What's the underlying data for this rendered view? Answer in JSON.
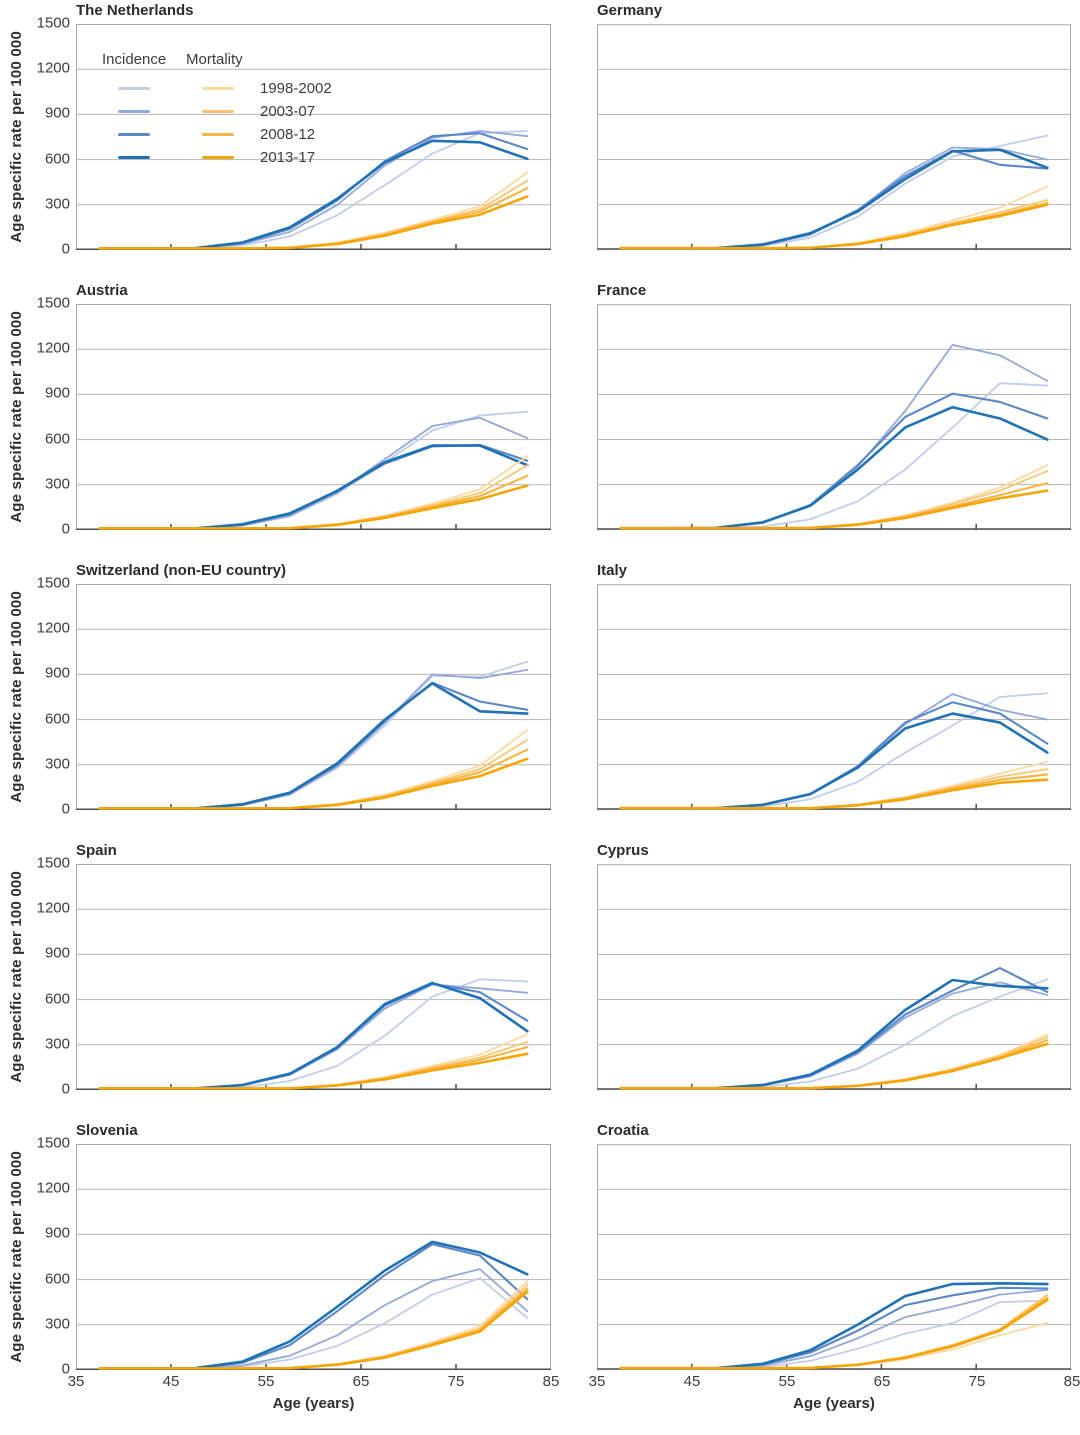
{
  "figure": {
    "y_axis_label": "Age specific rate per 100 000",
    "x_axis_label": "Age (years)",
    "y_ticks": [
      0,
      300,
      600,
      900,
      1200,
      1500
    ],
    "x_ticks": [
      35,
      45,
      55,
      65,
      75,
      85
    ],
    "grid_color": "#b5b5b5",
    "frame_color": "#a9a9a9",
    "axis_color": "#4d4d4d",
    "legend": {
      "col1_header": "Incidence",
      "col2_header": "Mortality",
      "periods": [
        "1998-2002",
        "2003-07",
        "2008-12",
        "2013-17"
      ],
      "incidence_colors": [
        "#c2cde9",
        "#93a9d9",
        "#5c87c7",
        "#1f72b5"
      ],
      "mortality_colors": [
        "#fdd9a0",
        "#fbc671",
        "#f9b440",
        "#f6a506"
      ]
    }
  },
  "chart_data": [
    {
      "type": "line",
      "title": "The Netherlands",
      "x": [
        37.5,
        42.5,
        47.5,
        52.5,
        57.5,
        62.5,
        67.5,
        72.5,
        77.5,
        82.5
      ],
      "xlim": [
        35,
        85
      ],
      "ylim": [
        0,
        1500
      ],
      "grid": "horizontal",
      "legend_position": "top-left-first-panel",
      "xlabel": "Age (years)",
      "ylabel": "Age specific rate per 100 000",
      "incidence": [
        [
          1,
          2,
          8,
          30,
          90,
          230,
          430,
          640,
          775,
          790
        ],
        [
          1,
          2,
          10,
          40,
          120,
          300,
          560,
          745,
          790,
          755
        ],
        [
          1,
          3,
          11,
          45,
          140,
          330,
          590,
          755,
          775,
          670
        ],
        [
          1,
          3,
          12,
          50,
          150,
          340,
          580,
          725,
          715,
          605
        ]
      ],
      "mortality": [
        [
          0,
          1,
          2,
          6,
          18,
          50,
          115,
          200,
          290,
          515
        ],
        [
          0,
          1,
          2,
          5,
          16,
          45,
          108,
          190,
          270,
          460
        ],
        [
          0,
          1,
          2,
          5,
          15,
          42,
          100,
          185,
          255,
          410
        ],
        [
          0,
          1,
          2,
          5,
          14,
          40,
          95,
          175,
          235,
          355
        ]
      ]
    },
    {
      "type": "line",
      "title": "Germany",
      "x": [
        37.5,
        42.5,
        47.5,
        52.5,
        57.5,
        62.5,
        67.5,
        72.5,
        77.5,
        82.5
      ],
      "xlim": [
        35,
        85
      ],
      "ylim": [
        0,
        1500
      ],
      "grid": "horizontal",
      "incidence": [
        [
          1,
          2,
          6,
          25,
          80,
          220,
          440,
          620,
          690,
          760
        ],
        [
          1,
          2,
          8,
          30,
          100,
          260,
          510,
          680,
          670,
          600
        ],
        [
          1,
          2,
          9,
          32,
          105,
          265,
          490,
          660,
          565,
          540
        ],
        [
          1,
          2,
          9,
          35,
          110,
          255,
          470,
          655,
          665,
          545
        ]
      ],
      "mortality": [
        [
          0,
          1,
          2,
          5,
          15,
          45,
          110,
          195,
          280,
          420
        ],
        [
          0,
          1,
          2,
          5,
          14,
          42,
          100,
          180,
          250,
          330
        ],
        [
          0,
          1,
          2,
          5,
          13,
          40,
          95,
          170,
          235,
          310
        ],
        [
          0,
          1,
          2,
          5,
          13,
          38,
          90,
          165,
          225,
          300
        ]
      ]
    },
    {
      "type": "line",
      "title": "Austria",
      "x": [
        37.5,
        42.5,
        47.5,
        52.5,
        57.5,
        62.5,
        67.5,
        72.5,
        77.5,
        82.5
      ],
      "xlim": [
        35,
        85
      ],
      "ylim": [
        0,
        1500
      ],
      "grid": "horizontal",
      "incidence": [
        [
          1,
          2,
          8,
          28,
          90,
          240,
          450,
          660,
          760,
          785
        ],
        [
          1,
          2,
          8,
          30,
          95,
          250,
          470,
          690,
          745,
          610
        ],
        [
          1,
          3,
          10,
          35,
          105,
          255,
          440,
          555,
          565,
          460
        ],
        [
          1,
          3,
          10,
          38,
          110,
          260,
          450,
          560,
          560,
          430
        ]
      ],
      "mortality": [
        [
          0,
          1,
          2,
          5,
          14,
          40,
          95,
          175,
          270,
          490
        ],
        [
          0,
          1,
          2,
          5,
          13,
          38,
          90,
          165,
          245,
          430
        ],
        [
          0,
          1,
          2,
          5,
          12,
          36,
          85,
          155,
          225,
          360
        ],
        [
          0,
          1,
          2,
          5,
          12,
          34,
          80,
          145,
          205,
          295
        ]
      ]
    },
    {
      "type": "line",
      "title": "France",
      "x": [
        37.5,
        42.5,
        47.5,
        52.5,
        57.5,
        62.5,
        67.5,
        72.5,
        77.5,
        82.5
      ],
      "xlim": [
        35,
        85
      ],
      "ylim": [
        0,
        1500
      ],
      "grid": "horizontal",
      "incidence": [
        [
          1,
          2,
          6,
          22,
          70,
          190,
          400,
          680,
          975,
          960
        ],
        [
          1,
          3,
          10,
          45,
          160,
          420,
          790,
          1230,
          1160,
          990
        ],
        [
          1,
          3,
          12,
          48,
          165,
          430,
          750,
          905,
          850,
          740
        ],
        [
          1,
          3,
          12,
          50,
          160,
          400,
          680,
          815,
          740,
          600
        ]
      ],
      "mortality": [
        [
          0,
          1,
          2,
          5,
          14,
          40,
          95,
          180,
          280,
          430
        ],
        [
          0,
          1,
          2,
          5,
          13,
          38,
          90,
          170,
          260,
          390
        ],
        [
          0,
          1,
          2,
          5,
          12,
          35,
          85,
          155,
          230,
          310
        ],
        [
          0,
          1,
          2,
          5,
          12,
          33,
          78,
          145,
          210,
          260
        ]
      ]
    },
    {
      "type": "line",
      "title": "Switzerland (non-EU country)",
      "x": [
        37.5,
        42.5,
        47.5,
        52.5,
        57.5,
        62.5,
        67.5,
        72.5,
        77.5,
        82.5
      ],
      "xlim": [
        35,
        85
      ],
      "ylim": [
        0,
        1500
      ],
      "grid": "horizontal",
      "incidence": [
        [
          1,
          2,
          8,
          30,
          100,
          280,
          560,
          890,
          885,
          985
        ],
        [
          1,
          2,
          8,
          32,
          105,
          290,
          580,
          900,
          875,
          930
        ],
        [
          1,
          3,
          10,
          35,
          110,
          300,
          590,
          845,
          720,
          665
        ],
        [
          1,
          3,
          10,
          38,
          115,
          310,
          600,
          840,
          655,
          640
        ]
      ],
      "mortality": [
        [
          0,
          1,
          2,
          5,
          14,
          40,
          100,
          190,
          295,
          530
        ],
        [
          0,
          1,
          2,
          5,
          13,
          38,
          95,
          180,
          270,
          465
        ],
        [
          0,
          1,
          2,
          5,
          12,
          36,
          88,
          170,
          250,
          400
        ],
        [
          0,
          1,
          2,
          5,
          12,
          34,
          82,
          160,
          225,
          340
        ]
      ]
    },
    {
      "type": "line",
      "title": "Italy",
      "x": [
        37.5,
        42.5,
        47.5,
        52.5,
        57.5,
        62.5,
        67.5,
        72.5,
        77.5,
        82.5
      ],
      "xlim": [
        35,
        85
      ],
      "ylim": [
        0,
        1500
      ],
      "grid": "horizontal",
      "incidence": [
        [
          1,
          2,
          6,
          22,
          70,
          185,
          380,
          560,
          750,
          775
        ],
        [
          1,
          2,
          8,
          30,
          100,
          280,
          570,
          770,
          665,
          600
        ],
        [
          1,
          2,
          9,
          32,
          105,
          290,
          580,
          715,
          640,
          440
        ],
        [
          1,
          2,
          9,
          33,
          105,
          280,
          540,
          640,
          580,
          380
        ]
      ],
      "mortality": [
        [
          0,
          1,
          2,
          4,
          12,
          35,
          85,
          160,
          240,
          320
        ],
        [
          0,
          1,
          2,
          4,
          11,
          33,
          80,
          150,
          220,
          270
        ],
        [
          0,
          1,
          2,
          4,
          11,
          32,
          75,
          140,
          200,
          235
        ],
        [
          0,
          1,
          2,
          4,
          10,
          30,
          70,
          130,
          180,
          200
        ]
      ]
    },
    {
      "type": "line",
      "title": "Spain",
      "x": [
        37.5,
        42.5,
        47.5,
        52.5,
        57.5,
        62.5,
        67.5,
        72.5,
        77.5,
        82.5
      ],
      "xlim": [
        35,
        85
      ],
      "ylim": [
        0,
        1500
      ],
      "grid": "horizontal",
      "incidence": [
        [
          1,
          2,
          5,
          18,
          60,
          160,
          360,
          620,
          735,
          720
        ],
        [
          1,
          2,
          8,
          30,
          100,
          270,
          540,
          700,
          675,
          645
        ],
        [
          1,
          2,
          9,
          32,
          105,
          280,
          560,
          705,
          650,
          460
        ],
        [
          1,
          2,
          9,
          33,
          108,
          285,
          570,
          710,
          610,
          390
        ]
      ],
      "mortality": [
        [
          0,
          1,
          2,
          4,
          12,
          35,
          85,
          160,
          235,
          370
        ],
        [
          0,
          1,
          2,
          4,
          11,
          33,
          80,
          150,
          215,
          320
        ],
        [
          0,
          1,
          2,
          4,
          11,
          32,
          75,
          140,
          200,
          285
        ],
        [
          0,
          1,
          2,
          4,
          10,
          30,
          70,
          130,
          180,
          240
        ]
      ]
    },
    {
      "type": "line",
      "title": "Cyprus",
      "x": [
        37.5,
        42.5,
        47.5,
        52.5,
        57.5,
        62.5,
        67.5,
        72.5,
        77.5,
        82.5
      ],
      "xlim": [
        35,
        85
      ],
      "ylim": [
        0,
        1500
      ],
      "grid": "horizontal",
      "incidence": [
        [
          1,
          2,
          5,
          18,
          55,
          140,
          300,
          490,
          620,
          735
        ],
        [
          1,
          2,
          8,
          28,
          90,
          240,
          480,
          640,
          715,
          630
        ],
        [
          1,
          2,
          9,
          30,
          95,
          250,
          500,
          660,
          810,
          650
        ],
        [
          1,
          2,
          9,
          32,
          100,
          260,
          530,
          730,
          690,
          675
        ]
      ],
      "mortality": [
        [
          0,
          1,
          1,
          3,
          10,
          30,
          70,
          140,
          230,
          365
        ],
        [
          0,
          1,
          1,
          3,
          10,
          28,
          68,
          135,
          225,
          350
        ],
        [
          0,
          1,
          1,
          3,
          9,
          27,
          65,
          130,
          215,
          330
        ],
        [
          0,
          1,
          1,
          3,
          9,
          26,
          62,
          125,
          210,
          305
        ]
      ]
    },
    {
      "type": "line",
      "title": "Slovenia",
      "x": [
        37.5,
        42.5,
        47.5,
        52.5,
        57.5,
        62.5,
        67.5,
        72.5,
        77.5,
        82.5
      ],
      "xlim": [
        35,
        85
      ],
      "ylim": [
        0,
        1500
      ],
      "grid": "horizontal",
      "incidence": [
        [
          1,
          2,
          6,
          22,
          70,
          160,
          310,
          500,
          610,
          345
        ],
        [
          1,
          2,
          8,
          30,
          95,
          230,
          430,
          590,
          670,
          390
        ],
        [
          1,
          3,
          11,
          48,
          165,
          390,
          630,
          835,
          760,
          470
        ],
        [
          1,
          3,
          12,
          55,
          190,
          420,
          660,
          850,
          780,
          635
        ]
      ],
      "mortality": [
        [
          0,
          1,
          2,
          5,
          14,
          40,
          95,
          185,
          290,
          590
        ],
        [
          0,
          1,
          2,
          5,
          13,
          38,
          90,
          175,
          275,
          565
        ],
        [
          0,
          1,
          2,
          5,
          13,
          36,
          85,
          170,
          265,
          540
        ],
        [
          0,
          1,
          2,
          5,
          12,
          35,
          82,
          165,
          255,
          520
        ]
      ]
    },
    {
      "type": "line",
      "title": "Croatia",
      "x": [
        37.5,
        42.5,
        47.5,
        52.5,
        57.5,
        62.5,
        67.5,
        72.5,
        77.5,
        82.5
      ],
      "xlim": [
        35,
        85
      ],
      "ylim": [
        0,
        1500
      ],
      "grid": "horizontal",
      "incidence": [
        [
          1,
          2,
          5,
          18,
          60,
          140,
          240,
          310,
          450,
          460
        ],
        [
          1,
          2,
          8,
          28,
          90,
          210,
          350,
          420,
          500,
          530
        ],
        [
          1,
          2,
          9,
          35,
          115,
          260,
          430,
          495,
          545,
          540
        ],
        [
          1,
          2,
          10,
          40,
          130,
          300,
          490,
          570,
          575,
          570
        ]
      ],
      "mortality": [
        [
          0,
          1,
          2,
          4,
          11,
          30,
          70,
          135,
          230,
          310
        ],
        [
          0,
          1,
          2,
          5,
          13,
          35,
          85,
          165,
          270,
          500
        ],
        [
          0,
          1,
          2,
          5,
          13,
          34,
          82,
          160,
          265,
          480
        ],
        [
          0,
          1,
          2,
          5,
          12,
          33,
          80,
          155,
          260,
          465
        ]
      ]
    }
  ]
}
